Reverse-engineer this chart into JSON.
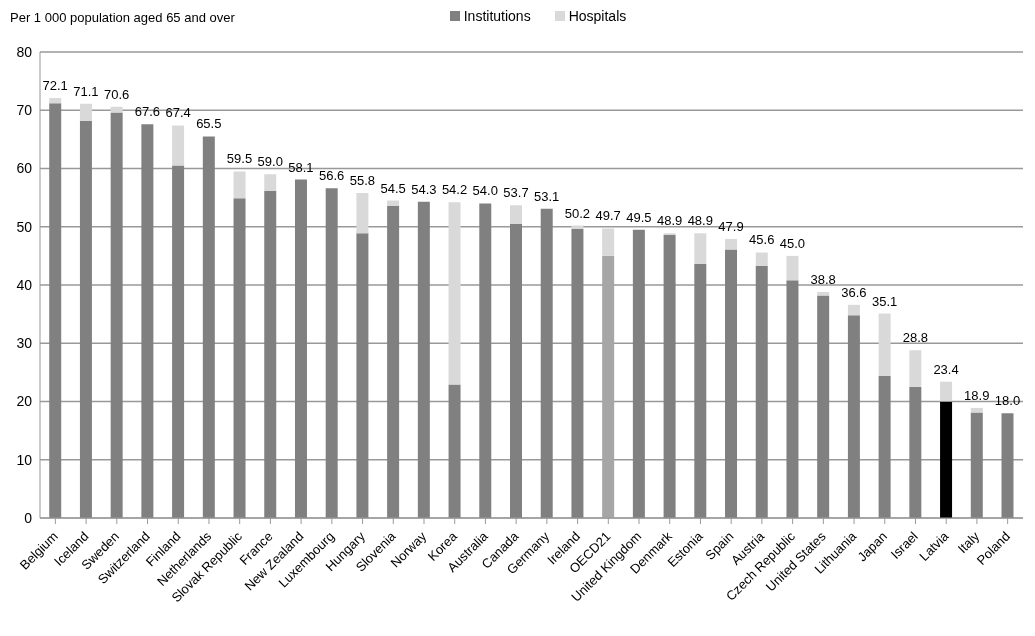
{
  "chart_data": {
    "type": "bar",
    "stacked": true,
    "ylabel": "Per 1 000 population aged 65 and over",
    "categories": [
      "Belgium",
      "Iceland",
      "Sweden",
      "Switzerland",
      "Finland",
      "Netherlands",
      "Slovak Republic",
      "France",
      "New Zealand",
      "Luxembourg",
      "Hungary",
      "Slovenia",
      "Norway",
      "Korea",
      "Australia",
      "Canada",
      "Germany",
      "Ireland",
      "OECD21",
      "United Kingdom",
      "Denmark",
      "Estonia",
      "Spain",
      "Austria",
      "Czech Republic",
      "United States",
      "Lithuania",
      "Japan",
      "Israel",
      "Latvia",
      "Italy",
      "Poland"
    ],
    "series": [
      {
        "name": "Institutions",
        "color": "#808080",
        "colors": [
          "#808080",
          "#808080",
          "#808080",
          "#808080",
          "#808080",
          "#808080",
          "#808080",
          "#808080",
          "#808080",
          "#808080",
          "#808080",
          "#808080",
          "#808080",
          "#808080",
          "#808080",
          "#808080",
          "#808080",
          "#808080",
          "#a6a6a6",
          "#808080",
          "#808080",
          "#808080",
          "#808080",
          "#808080",
          "#808080",
          "#808080",
          "#808080",
          "#808080",
          "#808080",
          "#000000",
          "#808080",
          "#808080"
        ],
        "values": [
          71.2,
          68.2,
          69.6,
          67.6,
          60.5,
          65.5,
          54.9,
          56.2,
          58.1,
          56.6,
          48.9,
          53.6,
          54.3,
          22.9,
          54.0,
          50.5,
          53.1,
          49.6,
          45.0,
          49.5,
          48.6,
          43.6,
          46.1,
          43.3,
          40.8,
          38.2,
          34.8,
          24.4,
          22.5,
          20.0,
          18.1,
          18.0
        ]
      },
      {
        "name": "Hospitals",
        "color": "#d9d9d9",
        "values": [
          0.9,
          2.9,
          1.0,
          0,
          6.9,
          0,
          4.6,
          2.8,
          0,
          0,
          6.9,
          0.9,
          0,
          31.3,
          0,
          3.2,
          0,
          0.6,
          4.7,
          0,
          0.3,
          5.3,
          1.8,
          2.3,
          4.2,
          0.6,
          1.8,
          10.7,
          6.3,
          3.4,
          0.8,
          0
        ]
      }
    ],
    "totals": [
      "72.1",
      "71.1",
      "70.6",
      "67.6",
      "67.4",
      "65.5",
      "59.5",
      "59.0",
      "58.1",
      "56.6",
      "55.8",
      "54.5",
      "54.3",
      "54.2",
      "54.0",
      "53.7",
      "53.1",
      "50.2",
      "49.7",
      "49.5",
      "48.9",
      "48.9",
      "47.9",
      "45.6",
      "45.0",
      "38.8",
      "36.6",
      "35.1",
      "28.8",
      "23.4",
      "18.9",
      "18.0"
    ],
    "ylim": [
      0,
      80
    ],
    "yticks": [
      0,
      10,
      20,
      30,
      40,
      50,
      60,
      70,
      80
    ],
    "grid": "y",
    "legend": "top"
  }
}
